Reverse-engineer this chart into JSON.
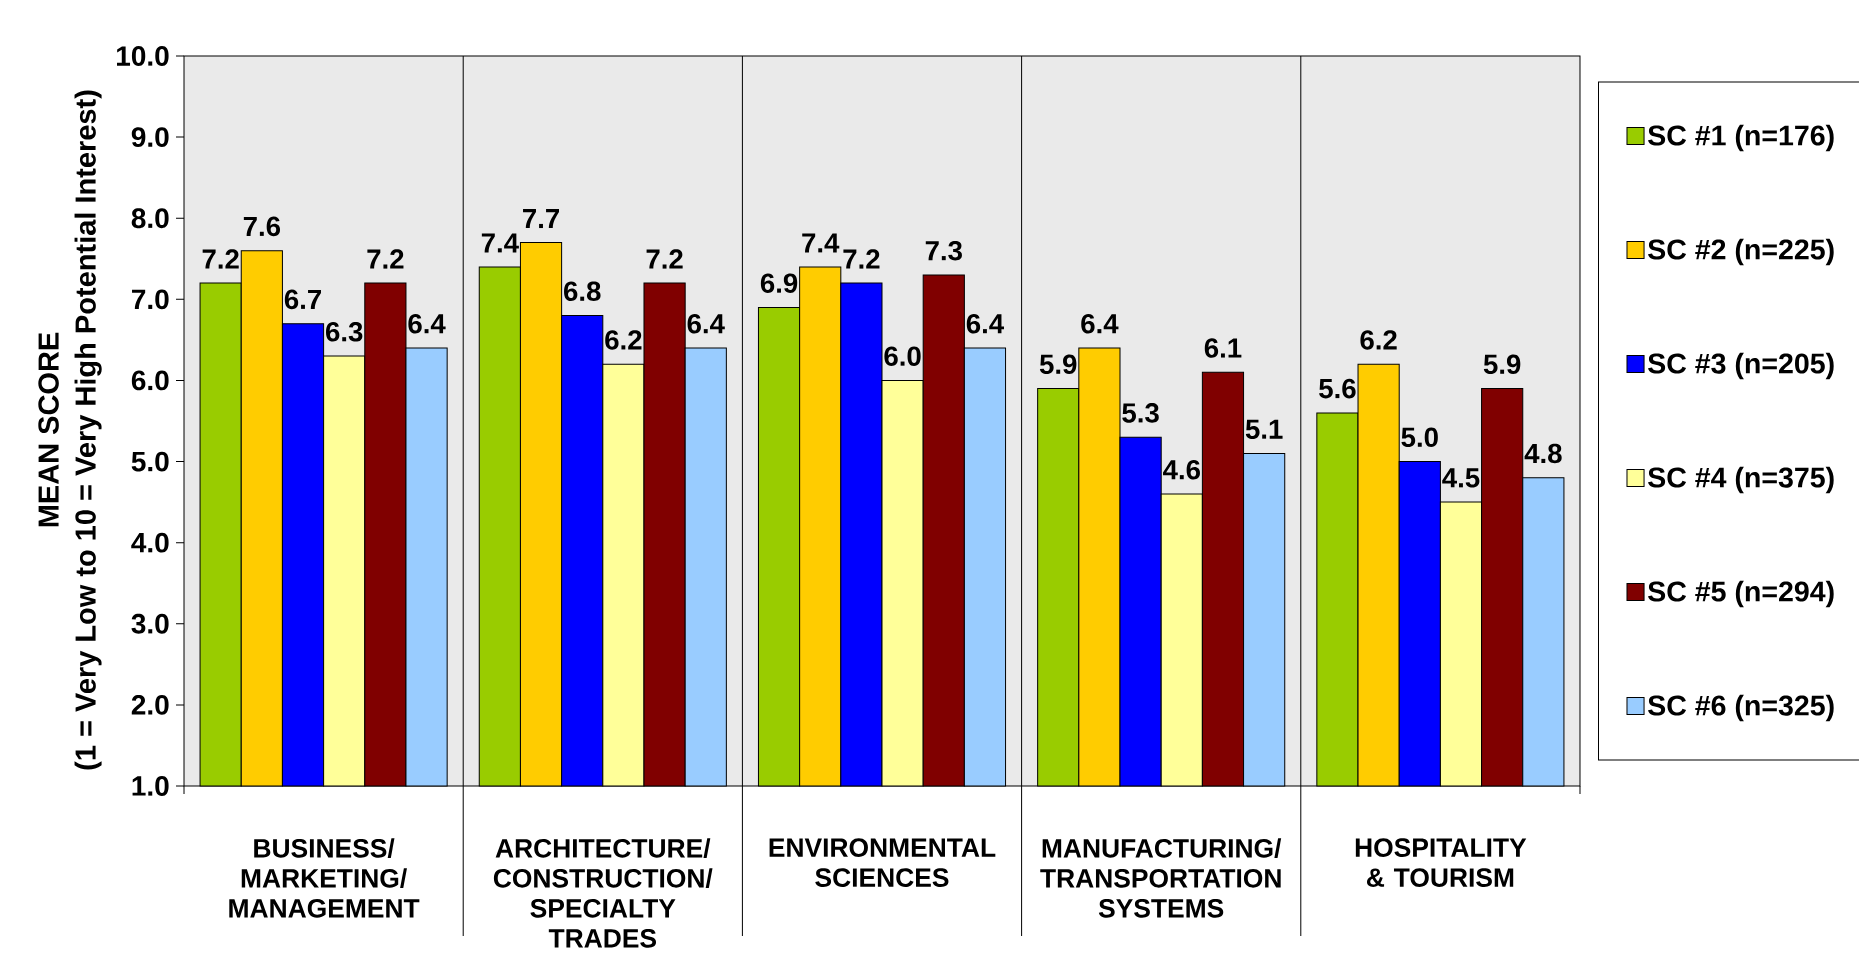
{
  "chart_data": {
    "type": "bar",
    "ylabel": "MEAN SCORE (1 = Very Low to 10 = Very High Potential Interest)",
    "categories": [
      "BUSINESS/ MARKETING/ MANAGEMENT",
      "ARCHITECTURE/ CONSTRUCTION/ SPECIALTY TRADES",
      "ENVIRONMENTAL SCIENCES",
      "MANUFACTURING/ TRANSPORTATION SYSTEMS",
      "HOSPITALITY & TOURISM"
    ],
    "series": [
      {
        "name": "SC #1 (n=176)",
        "color": "#99cc00",
        "values": [
          7.2,
          7.4,
          6.9,
          5.9,
          5.6
        ],
        "value_labels": [
          "7.2",
          "7.4",
          "6.9",
          "5.9",
          "5.6"
        ]
      },
      {
        "name": "SC #2 (n=225)",
        "color": "#ffcc00",
        "values": [
          7.6,
          7.7,
          7.4,
          6.4,
          6.2
        ],
        "value_labels": [
          "7.6",
          "7.7",
          "7.4",
          "6.4",
          "6.2"
        ]
      },
      {
        "name": "SC #3 (n=205)",
        "color": "#0000ff",
        "values": [
          6.7,
          6.8,
          7.2,
          5.3,
          5.0
        ],
        "value_labels": [
          "6.7",
          "6.8",
          "7.2",
          "5.3",
          "5.0"
        ]
      },
      {
        "name": "SC #4 (n=375)",
        "color": "#ffff99",
        "values": [
          6.3,
          6.2,
          6.0,
          4.6,
          4.5
        ],
        "value_labels": [
          "6.3",
          "6.2",
          "6.0",
          "4.6",
          "4.5"
        ]
      },
      {
        "name": "SC #5 (n=294)",
        "color": "#800000",
        "values": [
          7.2,
          7.2,
          7.3,
          6.1,
          5.9
        ],
        "value_labels": [
          "7.2",
          "7.2",
          "7.3",
          "6.1",
          "5.9"
        ]
      },
      {
        "name": "SC #6 (n=325)",
        "color": "#99ccff",
        "values": [
          6.4,
          6.4,
          6.4,
          5.1,
          4.8
        ],
        "value_labels": [
          "6.4",
          "6.4",
          "6.4",
          "5.1",
          "4.8"
        ]
      }
    ],
    "ylim": [
      1,
      10
    ],
    "yticks": [
      {
        "value": 1,
        "label": "1.0"
      },
      {
        "value": 2,
        "label": "2.0"
      },
      {
        "value": 3,
        "label": "3.0"
      },
      {
        "value": 4,
        "label": "4.0"
      },
      {
        "value": 5,
        "label": "5.0"
      },
      {
        "value": 6,
        "label": "6.0"
      },
      {
        "value": 7,
        "label": "7.0"
      },
      {
        "value": 8,
        "label": "8.0"
      },
      {
        "value": 9,
        "label": "9.0"
      },
      {
        "value": 10,
        "label": "10.0"
      }
    ],
    "grid": "x",
    "legend": "right"
  }
}
